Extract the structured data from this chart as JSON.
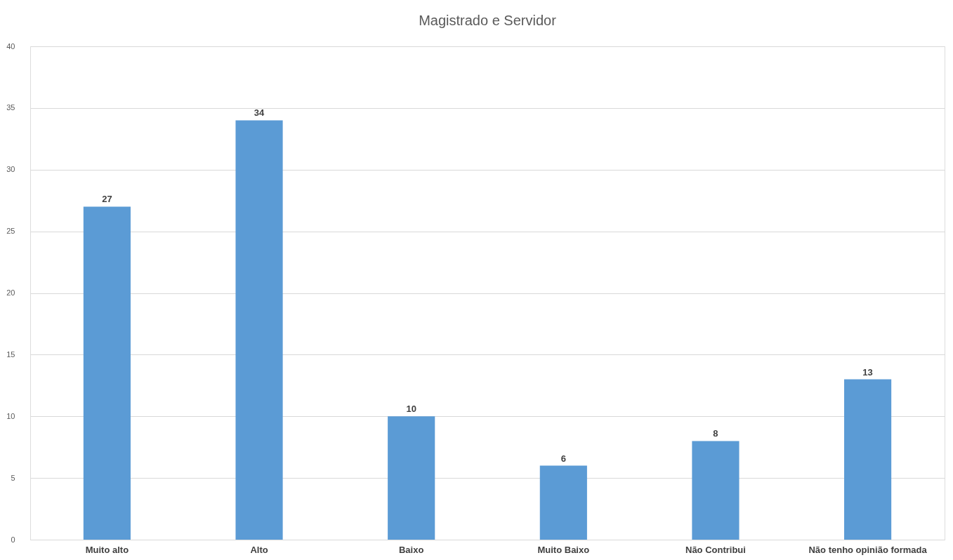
{
  "chart_data": {
    "type": "bar",
    "title": "Magistrado e Servidor",
    "categories": [
      "Muito alto",
      "Alto",
      "Baixo",
      "Muito Baixo",
      "Não Contribui",
      "Não tenho opinião formada"
    ],
    "values": [
      27,
      34,
      10,
      6,
      8,
      13
    ],
    "color": "#5b9bd5",
    "ylim": [
      0,
      40
    ],
    "yticks": [
      0,
      5,
      10,
      15,
      20,
      25,
      30,
      35,
      40
    ],
    "grid": "y",
    "data_labels": true
  }
}
